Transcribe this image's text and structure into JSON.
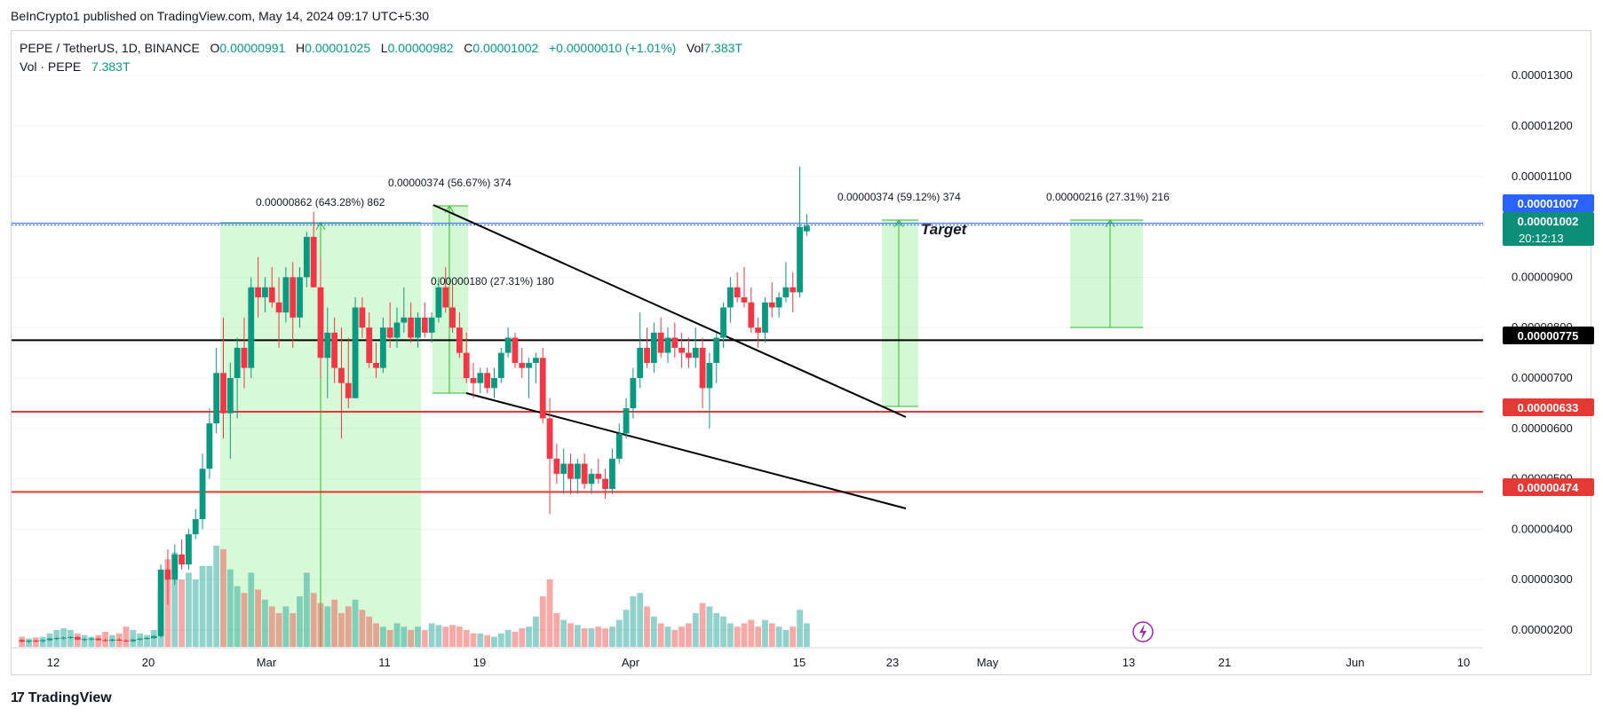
{
  "publisher": "BeInCrypto1 published on TradingView.com, May 14, 2024 09:17 UTC+5:30",
  "legend": {
    "symbol": "PEPE / TetherUS, 1D, BINANCE",
    "o_label": "O",
    "o": "0.00000991",
    "h_label": "H",
    "h": "0.00001025",
    "l_label": "L",
    "l": "0.00000982",
    "c_label": "C",
    "c": "0.00001002",
    "change": "+0.00000010 (+1.01%)",
    "vol_label": "Vol",
    "vol": "7.383T",
    "vol_series": "Vol · PEPE",
    "vol_series_value": "7.383T"
  },
  "footer": {
    "brand": "TradingView"
  },
  "chart_data": {
    "type": "candlestick",
    "ylim": [
      1.7e-06,
      1.4e-05
    ],
    "y_ticks": [
      "0.00001300",
      "0.00001200",
      "0.00001100",
      "0.00000900",
      "0.00000800",
      "0.00000700",
      "0.00000600",
      "0.00000500",
      "0.00000400",
      "0.00000300",
      "0.00000200"
    ],
    "x_ticks": [
      "12",
      "20",
      "Mar",
      "11",
      "19",
      "Apr",
      "15",
      "23",
      "May",
      "13",
      "21",
      "Jun",
      "10"
    ],
    "price_tags": {
      "blue": "0.00001007",
      "last": "0.00001002",
      "countdown": "20:12:13",
      "black": "0.00000775",
      "red1": "0.00000633",
      "red2": "0.00000474"
    },
    "levels": {
      "black": 7.75e-06,
      "red1": 6.33e-06,
      "red2": 4.74e-06,
      "blue": 1.007e-05
    },
    "annotations": {
      "m1": "0.00000862 (643.28%) 862",
      "m2": "0.00000374 (56.67%) 374",
      "m3": "0.00000180 (27.31%) 180",
      "m4": "0.00000374 (59.12%) 374",
      "m5": "0.00000216 (27.31%) 216",
      "target": "Target"
    },
    "candles": [
      [
        1.8e-06,
        1.82e-06,
        1.75e-06,
        1.77e-06,
        0.03
      ],
      [
        1.77e-06,
        1.8e-06,
        1.74e-06,
        1.79e-06,
        0.025
      ],
      [
        1.79e-06,
        1.81e-06,
        1.76e-06,
        1.78e-06,
        0.028
      ],
      [
        1.78e-06,
        1.82e-06,
        1.75e-06,
        1.8e-06,
        0.03
      ],
      [
        1.8e-06,
        1.85e-06,
        1.78e-06,
        1.83e-06,
        0.04
      ],
      [
        1.83e-06,
        1.86e-06,
        1.8e-06,
        1.84e-06,
        0.05
      ],
      [
        1.84e-06,
        1.87e-06,
        1.81e-06,
        1.85e-06,
        0.055
      ],
      [
        1.85e-06,
        1.88e-06,
        1.82e-06,
        1.86e-06,
        0.05
      ],
      [
        1.86e-06,
        1.88e-06,
        1.8e-06,
        1.81e-06,
        0.04
      ],
      [
        1.81e-06,
        1.84e-06,
        1.78e-06,
        1.82e-06,
        0.035
      ],
      [
        1.82e-06,
        1.85e-06,
        1.79e-06,
        1.83e-06,
        0.03
      ],
      [
        1.83e-06,
        1.85e-06,
        1.79e-06,
        1.8e-06,
        0.035
      ],
      [
        1.8e-06,
        1.83e-06,
        1.77e-06,
        1.79e-06,
        0.045
      ],
      [
        1.79e-06,
        1.83e-06,
        1.77e-06,
        1.81e-06,
        0.035
      ],
      [
        1.81e-06,
        1.84e-06,
        1.78e-06,
        1.79e-06,
        0.04
      ],
      [
        1.79e-06,
        1.82e-06,
        1.76e-06,
        1.78e-06,
        0.06
      ],
      [
        1.78e-06,
        1.83e-06,
        1.76e-06,
        1.81e-06,
        0.05
      ],
      [
        1.81e-06,
        1.84e-06,
        1.79e-06,
        1.83e-06,
        0.04
      ],
      [
        1.83e-06,
        1.86e-06,
        1.81e-06,
        1.84e-06,
        0.035
      ],
      [
        1.84e-06,
        1.9e-06,
        1.82e-06,
        1.88e-06,
        0.05
      ],
      [
        1.88e-06,
        3.3e-06,
        1.85e-06,
        3.2e-06,
        0.17
      ],
      [
        3.2e-06,
        3.6e-06,
        2.5e-06,
        3e-06,
        0.26
      ],
      [
        3e-06,
        3.7e-06,
        2.9e-06,
        3.5e-06,
        0.28
      ],
      [
        3.5e-06,
        3.8e-06,
        3.2e-06,
        3.3e-06,
        0.2
      ],
      [
        3.3e-06,
        4e-06,
        3.2e-06,
        3.9e-06,
        0.22
      ],
      [
        3.9e-06,
        4.4e-06,
        3.8e-06,
        4.2e-06,
        0.2
      ],
      [
        4.2e-06,
        5.5e-06,
        4e-06,
        5.2e-06,
        0.24
      ],
      [
        5.2e-06,
        6.4e-06,
        5e-06,
        6.1e-06,
        0.24
      ],
      [
        6.1e-06,
        7.6e-06,
        5.9e-06,
        7.1e-06,
        0.3
      ],
      [
        7.1e-06,
        8.2e-06,
        5.8e-06,
        6.3e-06,
        0.29
      ],
      [
        6.3e-06,
        7.3e-06,
        5.4e-06,
        7e-06,
        0.23
      ],
      [
        7e-06,
        7.8e-06,
        6.2e-06,
        7.6e-06,
        0.18
      ],
      [
        7.6e-06,
        8.2e-06,
        6.8e-06,
        7.2e-06,
        0.16
      ],
      [
        7.2e-06,
        9e-06,
        7e-06,
        8.8e-06,
        0.22
      ],
      [
        8.8e-06,
        9.4e-06,
        8.2e-06,
        8.6e-06,
        0.17
      ],
      [
        8.6e-06,
        9e-06,
        8.3e-06,
        8.8e-06,
        0.14
      ],
      [
        8.8e-06,
        9.2e-06,
        8.4e-06,
        8.5e-06,
        0.12
      ],
      [
        8.5e-06,
        9e-06,
        7.6e-06,
        8.3e-06,
        0.1
      ],
      [
        8.3e-06,
        9.2e-06,
        8.1e-06,
        9e-06,
        0.12
      ],
      [
        9e-06,
        9.3e-06,
        7.6e-06,
        8.2e-06,
        0.1
      ],
      [
        8.2e-06,
        9.2e-06,
        8e-06,
        9e-06,
        0.15
      ],
      [
        9e-06,
        9.9e-06,
        8.8e-06,
        9.8e-06,
        0.22
      ],
      [
        9.8e-06,
        1.03e-05,
        8.8e-06,
        8.8e-06,
        0.16
      ],
      [
        8.8e-06,
        9.4e-06,
        7e-06,
        7.4e-06,
        0.13
      ],
      [
        7.4e-06,
        8.4e-06,
        6.6e-06,
        7.9e-06,
        0.12
      ],
      [
        7.9e-06,
        8.2e-06,
        6.9e-06,
        7.2e-06,
        0.14
      ],
      [
        7.2e-06,
        8e-06,
        5.8e-06,
        6.9e-06,
        0.1
      ],
      [
        6.9e-06,
        7.8e-06,
        6.4e-06,
        6.6e-06,
        0.12
      ],
      [
        6.6e-06,
        8.6e-06,
        6.6e-06,
        8.4e-06,
        0.14
      ],
      [
        8.4e-06,
        8.6e-06,
        7.8e-06,
        8e-06,
        0.11
      ],
      [
        8e-06,
        8.3e-06,
        7.2e-06,
        7.3e-06,
        0.09
      ],
      [
        7.3e-06,
        7.7e-06,
        7e-06,
        7.2e-06,
        0.07
      ],
      [
        7.2e-06,
        8.2e-06,
        7.1e-06,
        8e-06,
        0.06
      ],
      [
        8e-06,
        8.5e-06,
        7.6e-06,
        7.8e-06,
        0.05
      ],
      [
        7.8e-06,
        8.4e-06,
        7.6e-06,
        8.1e-06,
        0.07
      ],
      [
        8.1e-06,
        8.8e-06,
        7.9e-06,
        8.2e-06,
        0.06
      ],
      [
        8.2e-06,
        8.5e-06,
        7.7e-06,
        7.8e-06,
        0.05
      ],
      [
        7.8e-06,
        8.3e-06,
        7.6e-06,
        8.2e-06,
        0.06
      ],
      [
        8.2e-06,
        8.5e-06,
        7.8e-06,
        7.9e-06,
        0.05
      ],
      [
        7.9e-06,
        8.3e-06,
        7.7e-06,
        8.2e-06,
        0.07
      ],
      [
        8.2e-06,
        9e-06,
        8.1e-06,
        8.8e-06,
        0.065
      ],
      [
        8.8e-06,
        9.2e-06,
        8.3e-06,
        8.4e-06,
        0.06
      ],
      [
        8.4e-06,
        8.9e-06,
        7.9e-06,
        8e-06,
        0.065
      ],
      [
        8e-06,
        8.3e-06,
        7.4e-06,
        7.5e-06,
        0.06
      ],
      [
        7.5e-06,
        7.9e-06,
        6.9e-06,
        7e-06,
        0.05
      ],
      [
        7e-06,
        7.3e-06,
        6.6e-06,
        6.9e-06,
        0.04
      ],
      [
        6.9e-06,
        7.2e-06,
        6.7e-06,
        7.1e-06,
        0.04
      ],
      [
        7.1e-06,
        7.2e-06,
        6.7e-06,
        6.8e-06,
        0.035
      ],
      [
        6.8e-06,
        7.2e-06,
        6.6e-06,
        7e-06,
        0.03
      ],
      [
        7e-06,
        7.6e-06,
        6.9e-06,
        7.5e-06,
        0.04
      ],
      [
        7.5e-06,
        8e-06,
        7.4e-06,
        7.8e-06,
        0.05
      ],
      [
        7.8e-06,
        7.9e-06,
        7.2e-06,
        7.3e-06,
        0.045
      ],
      [
        7.3e-06,
        7.6e-06,
        7e-06,
        7.2e-06,
        0.055
      ],
      [
        7.2e-06,
        7.4e-06,
        6.6e-06,
        7.3e-06,
        0.06
      ],
      [
        7.3e-06,
        7.5e-06,
        6.9e-06,
        7.4e-06,
        0.09
      ],
      [
        7.4e-06,
        7.6e-06,
        6.1e-06,
        6.2e-06,
        0.15
      ],
      [
        6.2e-06,
        6.6e-06,
        4.3e-06,
        5.4e-06,
        0.2
      ],
      [
        5.4e-06,
        5.7e-06,
        4.9e-06,
        5.1e-06,
        0.1
      ],
      [
        5.1e-06,
        5.6e-06,
        4.7e-06,
        5.3e-06,
        0.08
      ],
      [
        5.3e-06,
        5.5e-06,
        4.7e-06,
        5e-06,
        0.07
      ],
      [
        5e-06,
        5.4e-06,
        4.7e-06,
        5.3e-06,
        0.065
      ],
      [
        5.3e-06,
        5.5e-06,
        4.8e-06,
        4.9e-06,
        0.055
      ],
      [
        4.9e-06,
        5.2e-06,
        4.7e-06,
        5.1e-06,
        0.055
      ],
      [
        5.1e-06,
        5.4e-06,
        4.9e-06,
        5e-06,
        0.06
      ],
      [
        5e-06,
        5.2e-06,
        4.6e-06,
        4.8e-06,
        0.055
      ],
      [
        4.8e-06,
        5.6e-06,
        4.7e-06,
        5.4e-06,
        0.06
      ],
      [
        5.4e-06,
        6.1e-06,
        5.3e-06,
        5.9e-06,
        0.08
      ],
      [
        5.9e-06,
        6.6e-06,
        5.8e-06,
        6.4e-06,
        0.11
      ],
      [
        6.4e-06,
        7.2e-06,
        6.2e-06,
        7e-06,
        0.15
      ],
      [
        7e-06,
        8.3e-06,
        6.8e-06,
        7.6e-06,
        0.16
      ],
      [
        7.6e-06,
        8e-06,
        7.2e-06,
        7.3e-06,
        0.12
      ],
      [
        7.3e-06,
        8.1e-06,
        7.1e-06,
        7.9e-06,
        0.09
      ],
      [
        7.9e-06,
        8.2e-06,
        7.4e-06,
        7.5e-06,
        0.07
      ],
      [
        7.5e-06,
        8e-06,
        7.3e-06,
        7.8e-06,
        0.06
      ],
      [
        7.8e-06,
        8.1e-06,
        7.4e-06,
        7.6e-06,
        0.05
      ],
      [
        7.6e-06,
        7.9e-06,
        7.2e-06,
        7.5e-06,
        0.06
      ],
      [
        7.5e-06,
        7.8e-06,
        7.2e-06,
        7.4e-06,
        0.07
      ],
      [
        7.4e-06,
        8e-06,
        7.2e-06,
        7.6e-06,
        0.1
      ],
      [
        7.6e-06,
        7.8e-06,
        6.4e-06,
        6.8e-06,
        0.13
      ],
      [
        6.8e-06,
        7.5e-06,
        6e-06,
        7.3e-06,
        0.12
      ],
      [
        7.3e-06,
        7.9e-06,
        6.9e-06,
        7.8e-06,
        0.1
      ],
      [
        7.8e-06,
        8.5e-06,
        7.6e-06,
        8.4e-06,
        0.09
      ],
      [
        8.4e-06,
        9e-06,
        8.1e-06,
        8.8e-06,
        0.07
      ],
      [
        8.8e-06,
        9.1e-06,
        8.5e-06,
        8.6e-06,
        0.06
      ],
      [
        8.6e-06,
        9.2e-06,
        8.4e-06,
        8.5e-06,
        0.07
      ],
      [
        8.5e-06,
        8.8e-06,
        7.9e-06,
        8e-06,
        0.08
      ],
      [
        8e-06,
        8.2e-06,
        7.6e-06,
        7.9e-06,
        0.06
      ],
      [
        7.9e-06,
        8.6e-06,
        7.7e-06,
        8.5e-06,
        0.08
      ],
      [
        8.5e-06,
        8.9e-06,
        8.2e-06,
        8.4e-06,
        0.07
      ],
      [
        8.4e-06,
        8.7e-06,
        8.2e-06,
        8.6e-06,
        0.06
      ],
      [
        8.6e-06,
        9.3e-06,
        8.5e-06,
        8.8e-06,
        0.05
      ],
      [
        8.8e-06,
        9.1e-06,
        8.3e-06,
        8.7e-06,
        0.06
      ],
      [
        8.7e-06,
        1.12e-05,
        8.6e-06,
        1e-05,
        0.11
      ],
      [
        9.91e-06,
        1.025e-05,
        9.82e-06,
        1.002e-05,
        0.07
      ]
    ]
  }
}
